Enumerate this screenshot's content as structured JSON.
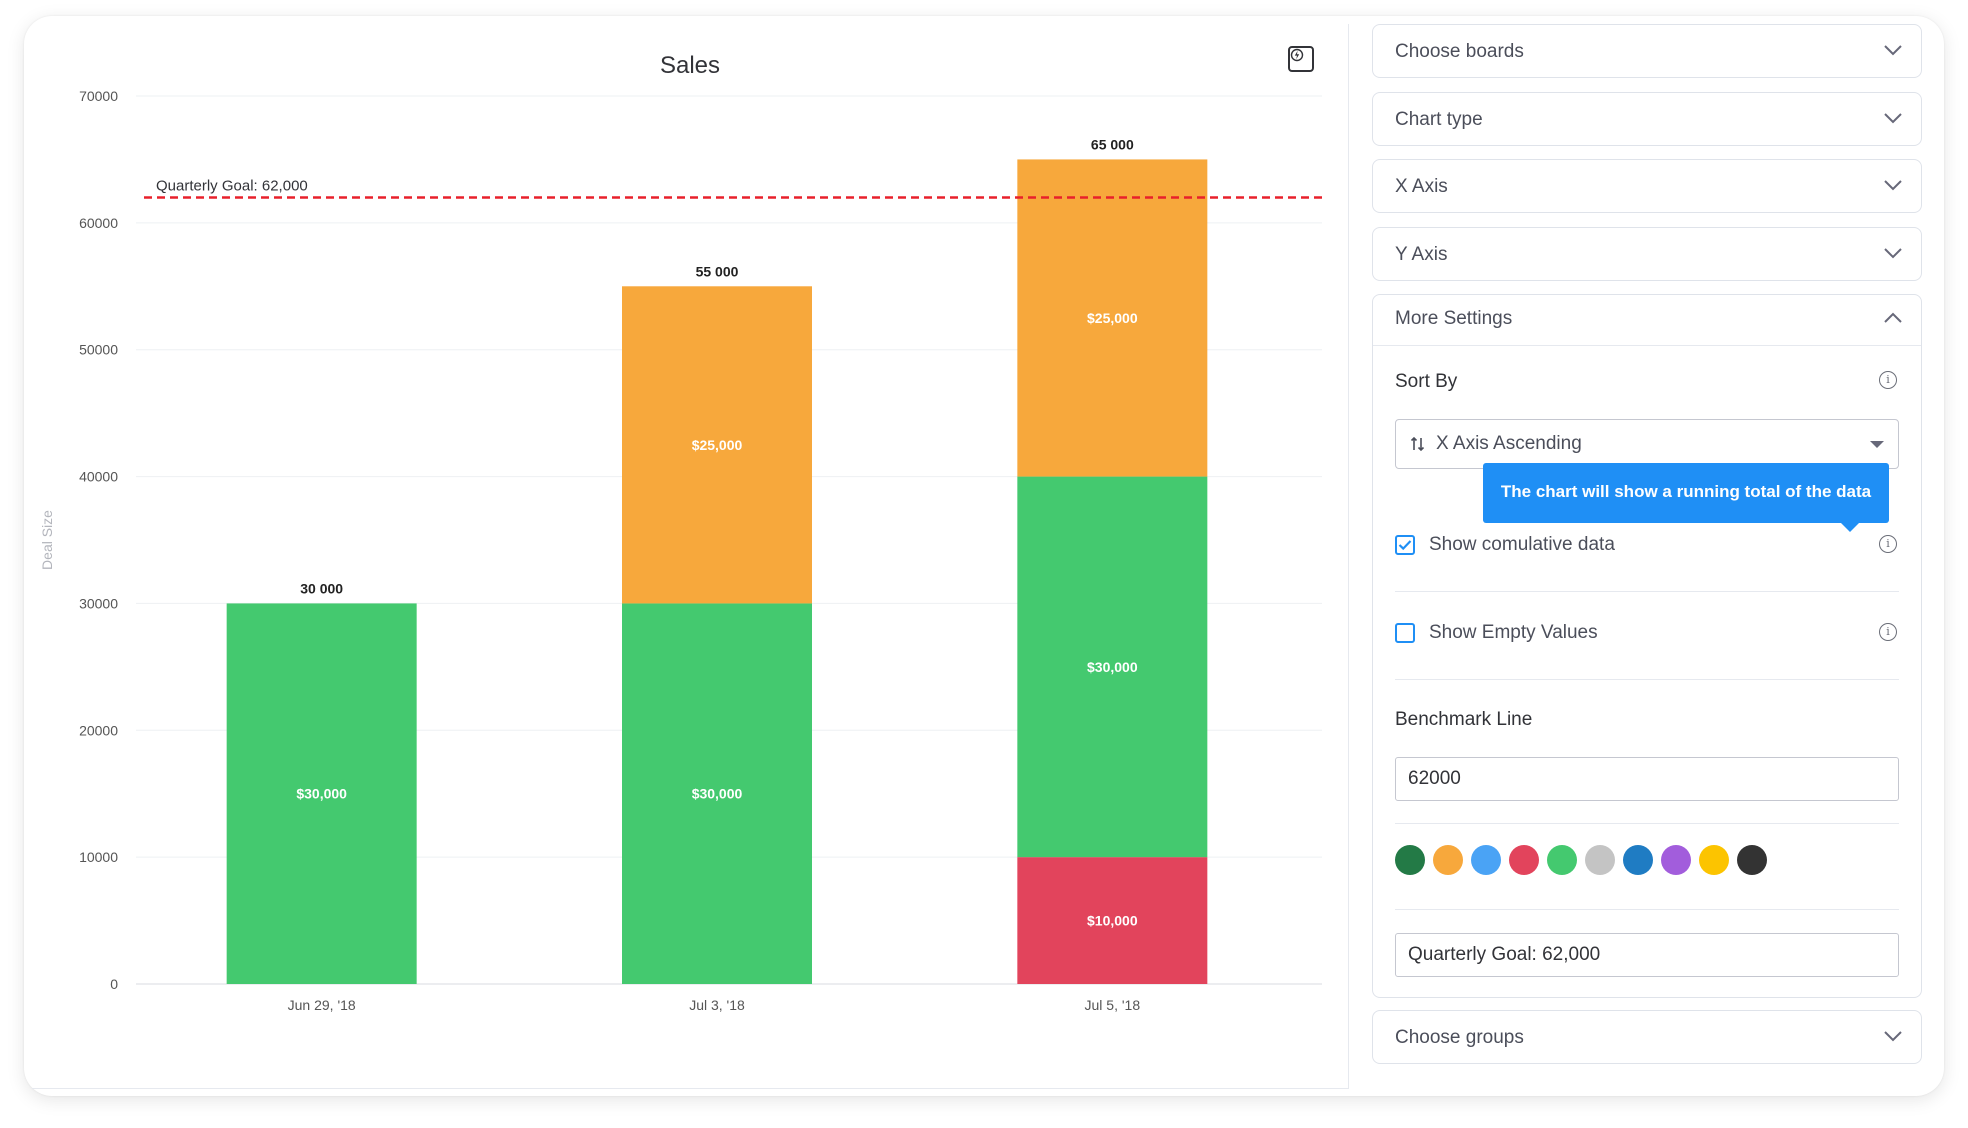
{
  "chart_panel": {
    "title": "Sales",
    "ylabel": "Deal Size"
  },
  "chart_data": {
    "type": "bar",
    "stacked": true,
    "categories": [
      "Jun 29, '18",
      "Jul 3, '18",
      "Jul 5, '18"
    ],
    "ylim": [
      0,
      70000
    ],
    "yticks": [
      "0",
      "10000",
      "20000",
      "30000",
      "40000",
      "50000",
      "60000",
      "70000"
    ],
    "ylabel": "Deal Size",
    "grid": true,
    "stacks": [
      [
        {
          "value": 30000,
          "label": "$30,000",
          "color": "#44c96f"
        }
      ],
      [
        {
          "value": 30000,
          "label": "$30,000",
          "color": "#44c96f"
        },
        {
          "value": 25000,
          "label": "$25,000",
          "color": "#f7a83c"
        }
      ],
      [
        {
          "value": 10000,
          "label": "$10,000",
          "color": "#e2445c"
        },
        {
          "value": 30000,
          "label": "$30,000",
          "color": "#44c96f"
        },
        {
          "value": 25000,
          "label": "$25,000",
          "color": "#f7a83c"
        }
      ]
    ],
    "totals": [
      "30 000",
      "55 000",
      "65 000"
    ],
    "benchmark": {
      "value": 62000,
      "label": "Quarterly Goal: 62,000",
      "color": "#e8202b"
    }
  },
  "settings": {
    "choose_boards": "Choose boards",
    "chart_type": "Chart type",
    "x_axis": "X Axis",
    "y_axis": "Y Axis",
    "more_settings": "More Settings",
    "sort_by": "Sort By",
    "sort_value": "X Axis Ascending",
    "tooltip": "The chart will show a running total of the data",
    "show_cumulative": "Show comulative data",
    "show_cumulative_checked": true,
    "show_empty": "Show Empty Values",
    "show_empty_checked": false,
    "benchmark_title": "Benchmark Line",
    "benchmark_value": "62000",
    "benchmark_label": "Quarterly Goal: 62,000",
    "palette": [
      "#237a46",
      "#f7a83c",
      "#4aa3f5",
      "#e2445c",
      "#44c96f",
      "#c4c4c4",
      "#1f7cc3",
      "#a25ddc",
      "#fcc400",
      "#333333"
    ],
    "choose_groups": "Choose groups"
  }
}
